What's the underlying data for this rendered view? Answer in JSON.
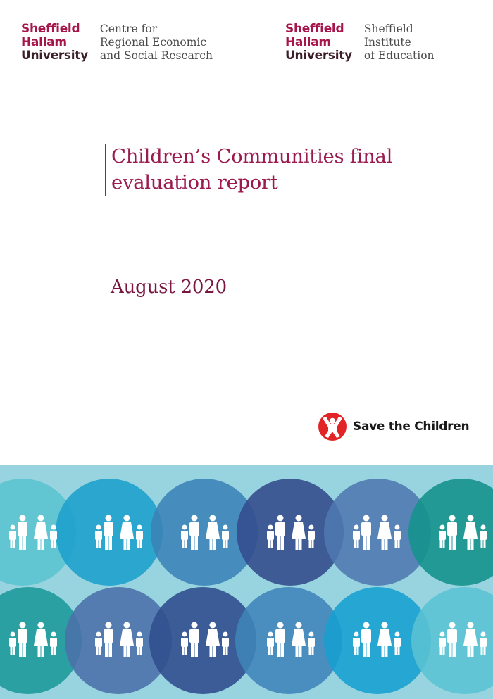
{
  "header": {
    "logo_left": {
      "university_lines": [
        "Sheffield",
        "Hallam",
        "University"
      ],
      "department_lines": [
        "Centre for",
        "Regional Economic",
        "and Social Research"
      ]
    },
    "logo_right": {
      "university_lines": [
        "Sheffield",
        "Hallam",
        "University"
      ],
      "department_lines": [
        "Sheffield",
        "Institute",
        "of Education"
      ]
    }
  },
  "document": {
    "title_lines": [
      "Children’s Communities final",
      "evaluation report"
    ],
    "date": "August 2020"
  },
  "partner": {
    "name": "Save the Children",
    "icon": "save-the-children-emblem-icon",
    "color": "#e22426"
  },
  "colors": {
    "accent": "#9b1b4f",
    "band_background": "#97d4e0"
  },
  "illustration": {
    "icon": "family-group-icon",
    "row_1_circle_colors": [
      "#5bc3cf",
      "#1c9fcc",
      "#3b82b6",
      "#344e8e",
      "#4e78b0",
      "#16928d"
    ],
    "row_2_circle_colors": [
      "#1e9a9c",
      "#4b6fa8",
      "#314f8e",
      "#3f84b8",
      "#179fcf",
      "#5bc3d3"
    ]
  }
}
